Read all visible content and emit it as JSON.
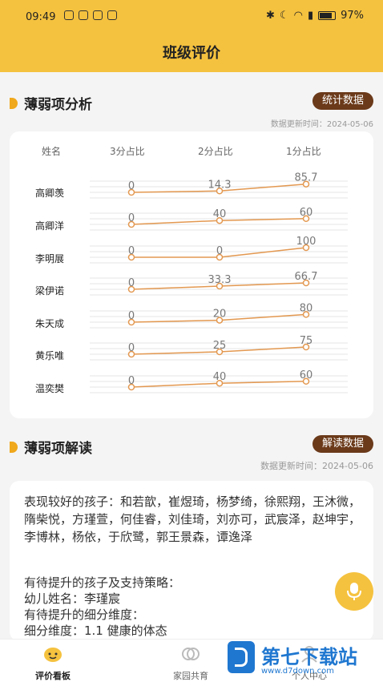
{
  "status": {
    "time": "09:49",
    "battery": "97%"
  },
  "header": {
    "title": "班级评价"
  },
  "weak_analysis": {
    "title": "薄弱项分析",
    "button": "统计数据",
    "updated": "数据更新时间：2024-05-06",
    "columns": [
      "姓名",
      "3分占比",
      "2分占比",
      "1分占比"
    ],
    "rows": [
      {
        "name": "高卿羡",
        "values": [
          "0",
          "14.3",
          "85.7"
        ]
      },
      {
        "name": "高卿洋",
        "values": [
          "0",
          "40",
          "60"
        ]
      },
      {
        "name": "李明展",
        "values": [
          "0",
          "0",
          "100"
        ]
      },
      {
        "name": "梁伊诺",
        "values": [
          "0",
          "33.3",
          "66.7"
        ]
      },
      {
        "name": "朱天成",
        "values": [
          "0",
          "20",
          "80"
        ]
      },
      {
        "name": "黄乐唯",
        "values": [
          "0",
          "25",
          "75"
        ]
      },
      {
        "name": "温奕樊",
        "values": [
          "0",
          "40",
          "60"
        ]
      }
    ]
  },
  "weak_interpret": {
    "title": "薄弱项解读",
    "button": "解读数据",
    "updated": "数据更新时间：2024-05-06",
    "good_kids": "表现较好的孩子：和若歆，崔煜琦，杨梦绮，徐熙翔，王沐微，隋柴悦，方瑾萱，何佳睿，刘佳琦，刘亦可，武宸泽，赵坤宇，李博林，杨依，于欣鹭，郭王景森，谭逸泽",
    "improve_title": "有待提升的孩子及支持策略：",
    "child_line": "幼儿姓名：李瑾宸",
    "dimension_title": "有待提升的细分维度：",
    "dimension_line": "细分维度：1.1 健康的体态"
  },
  "nav": {
    "items": [
      {
        "label": "评价看板",
        "icon": "face-icon"
      },
      {
        "label": "家园共育",
        "icon": "link-icon"
      },
      {
        "label": "个人中心",
        "icon": "user-icon"
      }
    ]
  },
  "watermark": {
    "text": "第七下载站",
    "url": "www.d7down.com"
  },
  "colors": {
    "accent": "#f5c23f",
    "pill": "#6b3a1a",
    "line": "#e39850"
  }
}
